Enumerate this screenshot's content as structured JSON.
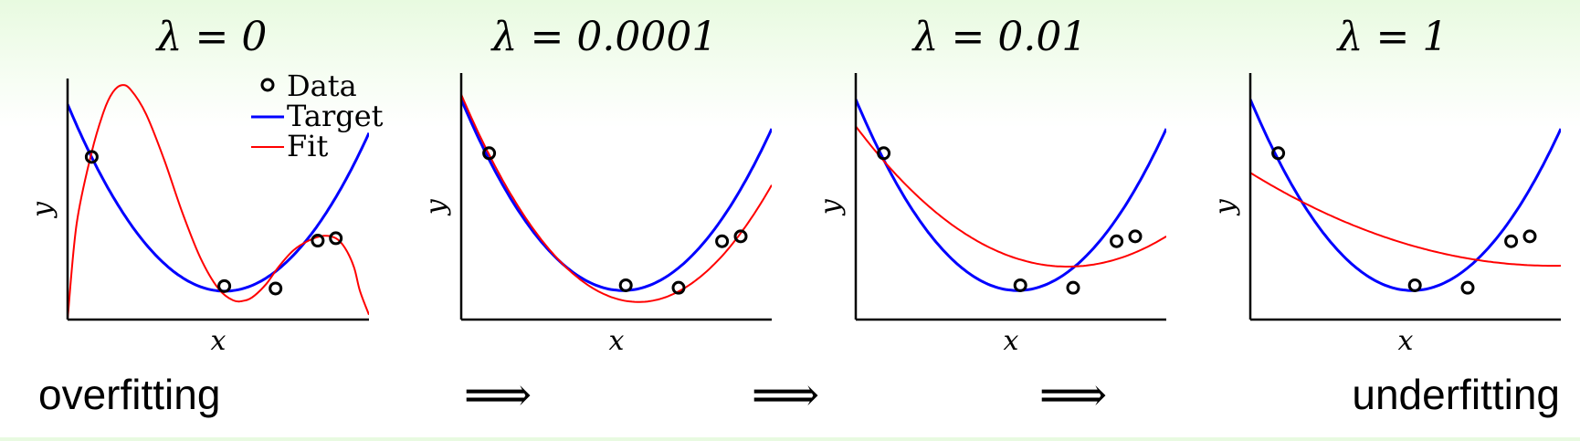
{
  "chart_data": [
    {
      "type": "line",
      "title": "λ = 0",
      "xlabel": "x",
      "ylabel": "y",
      "xlim": [
        0,
        1
      ],
      "ylim": [
        0,
        1
      ],
      "legend": {
        "placement": "top-right",
        "entries": [
          {
            "label": "Data",
            "kind": "marker"
          },
          {
            "label": "Target",
            "kind": "line",
            "color": "#0000ff"
          },
          {
            "label": "Fit",
            "kind": "line",
            "color": "#ff0000"
          }
        ]
      },
      "data_points": {
        "x": [
          0.08,
          0.52,
          0.69,
          0.83,
          0.89
        ],
        "y": [
          0.68,
          0.14,
          0.13,
          0.33,
          0.34
        ]
      },
      "series": [
        {
          "name": "Target",
          "color": "#0000ff",
          "kind": "quadratic",
          "coef": [
            0.9,
            -3.0,
            2.88
          ]
        },
        {
          "name": "Fit",
          "color": "#ff0000",
          "kind": "points",
          "x": [
            0,
            0.03,
            0.08,
            0.12,
            0.15,
            0.18,
            0.21,
            0.26,
            0.32,
            0.38,
            0.44,
            0.5,
            0.55,
            0.59,
            0.62,
            0.66,
            0.7,
            0.75,
            0.8,
            0.85,
            0.89,
            0.92,
            0.95,
            0.97,
            1.0
          ],
          "y": [
            0,
            0.4,
            0.7,
            0.87,
            0.95,
            0.98,
            0.96,
            0.86,
            0.67,
            0.45,
            0.26,
            0.13,
            0.08,
            0.08,
            0.1,
            0.15,
            0.22,
            0.29,
            0.33,
            0.35,
            0.34,
            0.3,
            0.22,
            0.12,
            0.02
          ]
        }
      ]
    },
    {
      "type": "line",
      "title": "λ = 0.0001",
      "xlabel": "x",
      "ylabel": "y",
      "xlim": [
        0,
        1
      ],
      "ylim": [
        0,
        1
      ],
      "data_points": {
        "x": [
          0.09,
          0.53,
          0.7,
          0.84,
          0.9
        ],
        "y": [
          0.68,
          0.14,
          0.13,
          0.32,
          0.34
        ]
      },
      "series": [
        {
          "name": "Target",
          "color": "#0000ff",
          "kind": "quadratic",
          "coef": [
            0.9,
            -3.0,
            2.88
          ]
        },
        {
          "name": "Fit",
          "color": "#ff0000",
          "kind": "quadratic",
          "coef": [
            0.92,
            -2.97,
            2.6
          ]
        }
      ]
    },
    {
      "type": "line",
      "title": "λ = 0.01",
      "xlabel": "x",
      "ylabel": "y",
      "xlim": [
        0,
        1
      ],
      "ylim": [
        0,
        1
      ],
      "data_points": {
        "x": [
          0.09,
          0.53,
          0.7,
          0.84,
          0.9
        ],
        "y": [
          0.68,
          0.14,
          0.13,
          0.32,
          0.34
        ]
      },
      "series": [
        {
          "name": "Target",
          "color": "#0000ff",
          "kind": "quadratic",
          "coef": [
            0.9,
            -3.0,
            2.88
          ]
        },
        {
          "name": "Fit",
          "color": "#ff0000",
          "kind": "quadratic",
          "coef": [
            0.79,
            -1.68,
            1.23
          ]
        }
      ]
    },
    {
      "type": "line",
      "title": "λ = 1",
      "xlabel": "x",
      "ylabel": "y",
      "xlim": [
        0,
        1
      ],
      "ylim": [
        0,
        1
      ],
      "data_points": {
        "x": [
          0.09,
          0.53,
          0.7,
          0.84,
          0.9
        ],
        "y": [
          0.68,
          0.14,
          0.13,
          0.32,
          0.34
        ]
      },
      "series": [
        {
          "name": "Target",
          "color": "#0000ff",
          "kind": "quadratic",
          "coef": [
            0.9,
            -3.0,
            2.88
          ]
        },
        {
          "name": "Fit",
          "color": "#ff0000",
          "kind": "quadratic",
          "coef": [
            0.6,
            -0.78,
            0.4
          ]
        }
      ]
    }
  ],
  "captions": {
    "left": "overfitting",
    "arrows": [
      "⟹",
      "⟹",
      "⟹"
    ],
    "right": "underfitting"
  },
  "colors": {
    "target": "#0000ff",
    "fit": "#ff0000",
    "data_marker": "#000000",
    "axes": "#000000"
  }
}
